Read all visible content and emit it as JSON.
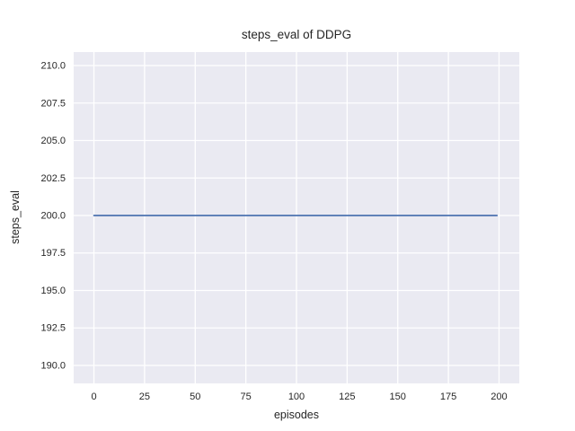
{
  "figure": {
    "kind": "matplotlib-seaborn-darkgrid-line-plot"
  },
  "chart_data": {
    "type": "line",
    "title": "steps_eval of DDPG",
    "xlabel": "episodes",
    "ylabel": "steps_eval",
    "series": [
      {
        "name": "steps_eval",
        "color": "#4c72b0",
        "x": [
          0,
          199
        ],
        "y": [
          200,
          200
        ],
        "note": "constant value 200 for all 200 episodes"
      }
    ],
    "x_ticks": [
      0,
      25,
      50,
      75,
      100,
      125,
      150,
      175,
      200
    ],
    "x_tick_labels": [
      "0",
      "25",
      "50",
      "75",
      "100",
      "125",
      "150",
      "175",
      "200"
    ],
    "y_ticks": [
      190.0,
      192.5,
      195.0,
      197.5,
      200.0,
      202.5,
      205.0,
      207.5,
      210.0
    ],
    "y_tick_labels": [
      "190.0",
      "192.5",
      "195.0",
      "197.5",
      "200.0",
      "202.5",
      "205.0",
      "207.5",
      "210.0"
    ],
    "xlim": [
      -10,
      210
    ],
    "ylim": [
      188.8,
      210.9
    ],
    "grid": true,
    "legend": false,
    "style": {
      "plot_bg": "#eaeaf2",
      "grid_color": "#ffffff",
      "text_color": "#262626",
      "figure_bg": "#ffffff",
      "line_width": 1.8,
      "grid_width": 1.3
    }
  }
}
